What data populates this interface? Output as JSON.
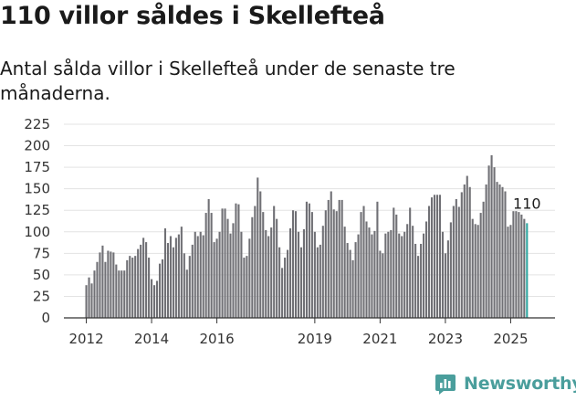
{
  "header": {
    "title": "110 villor såldes i Skellefteå",
    "subtitle": "Antal sålda villor i Skellefteå under de senaste tre månaderna."
  },
  "brand": {
    "name": "Newsworthy"
  },
  "colors": {
    "bar": "#707075",
    "highlight": "#2fa6a0",
    "grid": "#e3e3e3",
    "axis": "#333333",
    "brand": "#4a9e9c"
  },
  "chart_data": {
    "type": "bar",
    "title": "110 villor såldes i Skellefteå",
    "xlabel": "",
    "ylabel": "",
    "ylim": [
      0,
      225
    ],
    "y_ticks": [
      0,
      25,
      50,
      75,
      100,
      125,
      150,
      175,
      200,
      225
    ],
    "x_ticks": [
      "2012",
      "2014",
      "2016",
      "2019",
      "2021",
      "2023",
      "2025"
    ],
    "x_tick_index": [
      0,
      24,
      48,
      84,
      108,
      132,
      156
    ],
    "grid": true,
    "legend": "none",
    "highlight_label": "110",
    "categories": [
      "2012-01",
      "2012-02",
      "2012-03",
      "2012-04",
      "2012-05",
      "2012-06",
      "2012-07",
      "2012-08",
      "2012-09",
      "2012-10",
      "2012-11",
      "2012-12",
      "2013-01",
      "2013-02",
      "2013-03",
      "2013-04",
      "2013-05",
      "2013-06",
      "2013-07",
      "2013-08",
      "2013-09",
      "2013-10",
      "2013-11",
      "2013-12",
      "2014-01",
      "2014-02",
      "2014-03",
      "2014-04",
      "2014-05",
      "2014-06",
      "2014-07",
      "2014-08",
      "2014-09",
      "2014-10",
      "2014-11",
      "2014-12",
      "2015-01",
      "2015-02",
      "2015-03",
      "2015-04",
      "2015-05",
      "2015-06",
      "2015-07",
      "2015-08",
      "2015-09",
      "2015-10",
      "2015-11",
      "2015-12",
      "2016-01",
      "2016-02",
      "2016-03",
      "2016-04",
      "2016-05",
      "2016-06",
      "2016-07",
      "2016-08",
      "2016-09",
      "2016-10",
      "2016-11",
      "2016-12",
      "2017-01",
      "2017-02",
      "2017-03",
      "2017-04",
      "2017-05",
      "2017-06",
      "2017-07",
      "2017-08",
      "2017-09",
      "2017-10",
      "2017-11",
      "2017-12",
      "2018-01",
      "2018-02",
      "2018-03",
      "2018-04",
      "2018-05",
      "2018-06",
      "2018-07",
      "2018-08",
      "2018-09",
      "2018-10",
      "2018-11",
      "2018-12",
      "2019-01",
      "2019-02",
      "2019-03",
      "2019-04",
      "2019-05",
      "2019-06",
      "2019-07",
      "2019-08",
      "2019-09",
      "2019-10",
      "2019-11",
      "2019-12",
      "2020-01",
      "2020-02",
      "2020-03",
      "2020-04",
      "2020-05",
      "2020-06",
      "2020-07",
      "2020-08",
      "2020-09",
      "2020-10",
      "2020-11",
      "2020-12",
      "2021-01",
      "2021-02",
      "2021-03",
      "2021-04",
      "2021-05",
      "2021-06",
      "2021-07",
      "2021-08",
      "2021-09",
      "2021-10",
      "2021-11",
      "2021-12",
      "2022-01",
      "2022-02",
      "2022-03",
      "2022-04",
      "2022-05",
      "2022-06",
      "2022-07",
      "2022-08",
      "2022-09",
      "2022-10",
      "2022-11",
      "2022-12",
      "2023-01",
      "2023-02",
      "2023-03",
      "2023-04",
      "2023-05",
      "2023-06",
      "2023-07",
      "2023-08",
      "2023-09",
      "2023-10",
      "2023-11",
      "2023-12",
      "2024-01",
      "2024-02",
      "2024-03",
      "2024-04",
      "2024-05",
      "2024-06",
      "2024-07",
      "2024-08",
      "2024-09",
      "2024-10",
      "2024-11",
      "2024-12",
      "2025-01",
      "2025-02",
      "2025-03",
      "2025-04",
      "2025-05",
      "2025-06",
      "2025-07"
    ],
    "values": [
      38,
      47,
      40,
      55,
      65,
      76,
      84,
      65,
      78,
      77,
      76,
      62,
      55,
      55,
      55,
      67,
      72,
      70,
      72,
      80,
      85,
      93,
      88,
      70,
      45,
      38,
      43,
      63,
      68,
      104,
      87,
      95,
      82,
      93,
      97,
      106,
      75,
      56,
      72,
      85,
      100,
      95,
      100,
      96,
      122,
      138,
      122,
      88,
      92,
      100,
      127,
      127,
      115,
      98,
      110,
      133,
      132,
      100,
      70,
      72,
      92,
      117,
      130,
      163,
      147,
      123,
      102,
      95,
      105,
      130,
      115,
      82,
      58,
      70,
      79,
      104,
      125,
      124,
      100,
      82,
      103,
      135,
      133,
      123,
      100,
      82,
      85,
      107,
      125,
      137,
      147,
      126,
      124,
      137,
      137,
      106,
      87,
      79,
      67,
      88,
      97,
      123,
      130,
      112,
      105,
      97,
      101,
      135,
      78,
      75,
      98,
      100,
      102,
      128,
      120,
      98,
      95,
      100,
      109,
      128,
      107,
      86,
      72,
      86,
      98,
      112,
      130,
      140,
      143,
      143,
      143,
      100,
      75,
      90,
      111,
      130,
      138,
      129,
      146,
      155,
      165,
      152,
      115,
      109,
      108,
      122,
      135,
      155,
      177,
      189,
      175,
      158,
      155,
      152,
      147,
      106,
      108,
      124,
      124,
      123,
      120,
      115,
      110
    ]
  }
}
